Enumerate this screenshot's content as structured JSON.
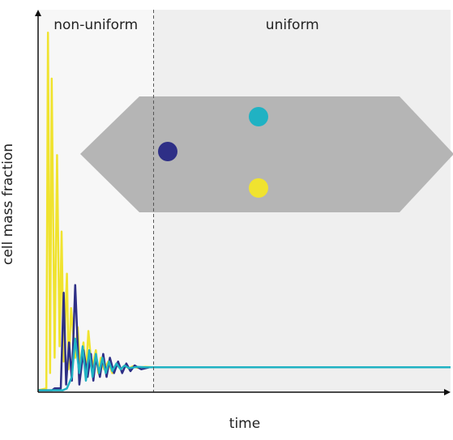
{
  "chart_data": {
    "type": "line",
    "title": "",
    "xlabel": "time",
    "ylabel": "cell mass fraction",
    "xlim": [
      0,
      100
    ],
    "ylim": [
      0,
      1
    ],
    "xticks": [],
    "yticks": [],
    "grid": false,
    "legend": "none",
    "regions": [
      {
        "label": "non-uniform",
        "x_start": 0,
        "x_end": 28,
        "color": "#f7f7f7"
      },
      {
        "label": "uniform",
        "x_start": 28,
        "x_end": 100,
        "color": "#efefef"
      }
    ],
    "divider_x": 28,
    "equilibrium_value": 0.065,
    "series": [
      {
        "color": "#f0e32f",
        "x": [
          0,
          2,
          2.4,
          2.9,
          3.3,
          4.0,
          4.6,
          5.2,
          5.7,
          6.2,
          7.0,
          7.4,
          8.0,
          9.0,
          9.6,
          10.2,
          11.0,
          11.6,
          12.2,
          13.0,
          14.0,
          14.6,
          15.2,
          16.0,
          17.0,
          18.0,
          19.0,
          20.0,
          21.0,
          22.0,
          23.0,
          24.0,
          26.0,
          28.0,
          32.0,
          100
        ],
        "y": [
          0.005,
          0.01,
          0.94,
          0.05,
          0.82,
          0.09,
          0.62,
          0.12,
          0.42,
          0.08,
          0.31,
          0.06,
          0.22,
          0.09,
          0.17,
          0.06,
          0.13,
          0.05,
          0.16,
          0.06,
          0.11,
          0.05,
          0.09,
          0.06,
          0.08,
          0.05,
          0.075,
          0.06,
          0.07,
          0.062,
          0.068,
          0.064,
          0.066,
          0.065,
          0.065,
          0.065
        ]
      },
      {
        "color": "#2e2f86",
        "x": [
          0,
          3.4,
          4.0,
          5.5,
          6.2,
          6.8,
          7.5,
          8.2,
          9.0,
          10.0,
          11.0,
          12.0,
          12.8,
          13.4,
          14.0,
          15.0,
          15.8,
          16.6,
          17.4,
          18.4,
          19.4,
          20.4,
          21.4,
          22.4,
          23.4,
          25.0,
          27.0,
          30.0,
          100
        ],
        "y": [
          0.005,
          0.005,
          0.01,
          0.01,
          0.26,
          0.02,
          0.13,
          0.03,
          0.28,
          0.02,
          0.11,
          0.04,
          0.1,
          0.03,
          0.09,
          0.04,
          0.1,
          0.04,
          0.09,
          0.05,
          0.08,
          0.05,
          0.075,
          0.055,
          0.07,
          0.06,
          0.065,
          0.065,
          0.065
        ]
      },
      {
        "color": "#20b2c3",
        "x": [
          0,
          6.0,
          7.0,
          8.2,
          9.0,
          10.0,
          10.8,
          11.6,
          12.4,
          13.2,
          14.0,
          14.8,
          15.6,
          16.4,
          17.2,
          18.0,
          19.0,
          20.0,
          21.0,
          22.0,
          24.0,
          26.0,
          28.0,
          100
        ],
        "y": [
          0.005,
          0.005,
          0.01,
          0.04,
          0.14,
          0.05,
          0.12,
          0.03,
          0.11,
          0.04,
          0.1,
          0.05,
          0.09,
          0.05,
          0.08,
          0.055,
          0.075,
          0.06,
          0.07,
          0.063,
          0.066,
          0.065,
          0.065,
          0.065
        ]
      }
    ]
  },
  "inset": {
    "shape_color": "#b5b5b5",
    "dots": [
      {
        "name": "dark-blue",
        "color": "#2e2f86"
      },
      {
        "name": "teal",
        "color": "#20b2c3"
      },
      {
        "name": "yellow",
        "color": "#f0e32f"
      }
    ]
  }
}
